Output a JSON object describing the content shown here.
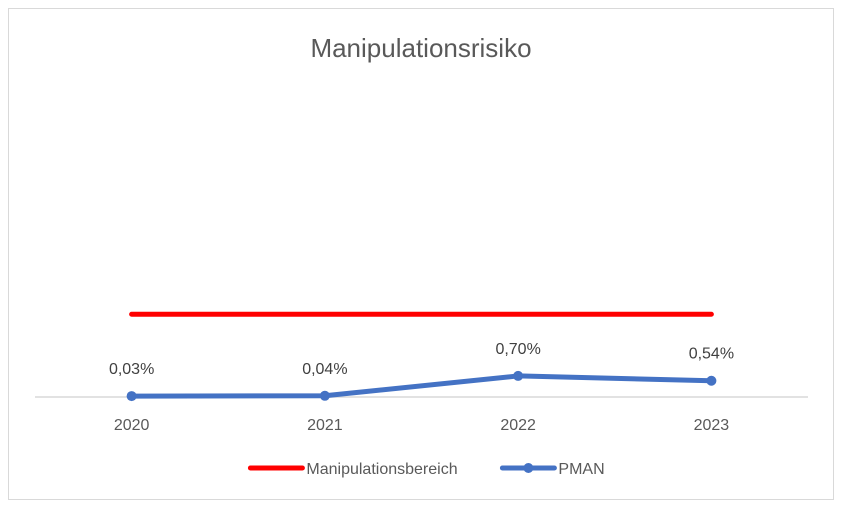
{
  "chart_data": {
    "type": "line",
    "title": "Manipulationsrisiko",
    "categories": [
      "2020",
      "2021",
      "2022",
      "2023"
    ],
    "series": [
      {
        "name": "Manipulationsbereich",
        "color": "#ff0000",
        "values": [
          0.0275,
          0.0275,
          0.0275,
          0.0275
        ],
        "show_labels": false,
        "markers": false
      },
      {
        "name": "PMAN",
        "color": "#4472c4",
        "values": [
          0.0003,
          0.0004,
          0.007,
          0.0054
        ],
        "labels": [
          "0,03%",
          "0,04%",
          "0,70%",
          "0,54%"
        ],
        "show_labels": true,
        "markers": true
      }
    ],
    "ylim": [
      0,
      0.1
    ],
    "grid": false,
    "legend": "bottom"
  }
}
